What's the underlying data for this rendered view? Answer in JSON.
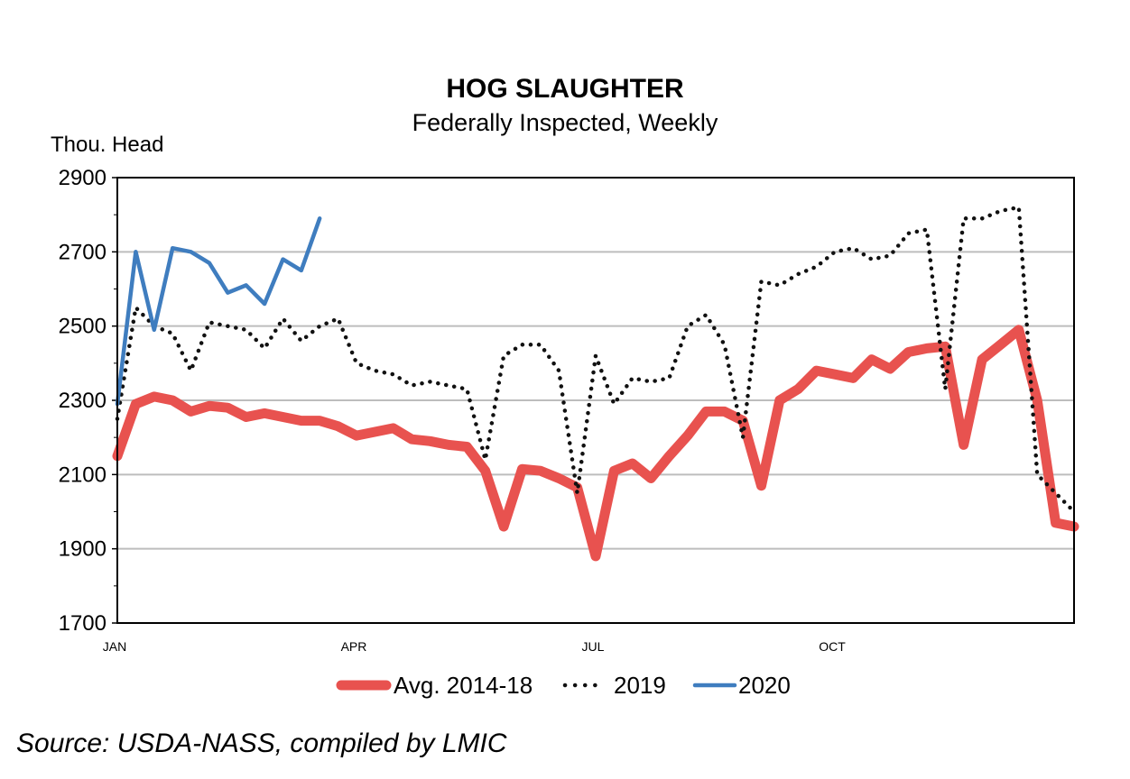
{
  "chart_data": {
    "type": "line",
    "title": "HOG SLAUGHTER",
    "subtitle": "Federally Inspected, Weekly",
    "ylabel": "Thou. Head",
    "ylim": [
      1700,
      2900
    ],
    "yticks": [
      1700,
      1900,
      2100,
      2300,
      2500,
      2700,
      2900
    ],
    "xlim": [
      1,
      53
    ],
    "xticks": [
      {
        "week": 1,
        "label": "JAN"
      },
      {
        "week": 14,
        "label": "APR"
      },
      {
        "week": 27,
        "label": "JUL"
      },
      {
        "week": 40,
        "label": "OCT"
      }
    ],
    "grid": true,
    "legend": "bottom",
    "series": [
      {
        "name": "Avg. 2014-18",
        "color": "#e8524f",
        "style": "thick",
        "weeks": [
          1,
          2,
          3,
          4,
          5,
          6,
          7,
          8,
          9,
          10,
          11,
          12,
          13,
          14,
          15,
          16,
          17,
          18,
          19,
          20,
          21,
          22,
          23,
          24,
          25,
          26,
          27,
          28,
          29,
          30,
          31,
          32,
          33,
          34,
          35,
          36,
          37,
          38,
          39,
          40,
          41,
          42,
          43,
          44,
          45,
          46,
          47,
          48,
          49,
          50,
          51,
          52,
          53
        ],
        "values": [
          2150,
          2290,
          2310,
          2300,
          2270,
          2285,
          2280,
          2255,
          2265,
          2255,
          2245,
          2245,
          2230,
          2205,
          2215,
          2225,
          2195,
          2190,
          2180,
          2175,
          2110,
          1960,
          2115,
          2110,
          2090,
          2065,
          1880,
          2110,
          2130,
          2090,
          2150,
          2205,
          2270,
          2270,
          2245,
          2070,
          2300,
          2330,
          2380,
          2370,
          2360,
          2410,
          2385,
          2430,
          2440,
          2445,
          2180,
          2410,
          2450,
          2490,
          2300,
          1970,
          1960
        ]
      },
      {
        "name": "2019",
        "color": "#111111",
        "style": "dotted",
        "weeks": [
          1,
          2,
          3,
          4,
          5,
          6,
          7,
          8,
          9,
          10,
          11,
          12,
          13,
          14,
          15,
          16,
          17,
          18,
          19,
          20,
          21,
          22,
          23,
          24,
          25,
          26,
          27,
          28,
          29,
          30,
          31,
          32,
          33,
          34,
          35,
          36,
          37,
          38,
          39,
          40,
          41,
          42,
          43,
          44,
          45,
          46,
          47,
          48,
          49,
          50,
          51,
          52,
          53
        ],
        "values": [
          2250,
          2550,
          2500,
          2480,
          2380,
          2510,
          2500,
          2490,
          2440,
          2520,
          2460,
          2500,
          2520,
          2400,
          2380,
          2370,
          2340,
          2350,
          2340,
          2330,
          2140,
          2420,
          2450,
          2450,
          2380,
          2050,
          2420,
          2290,
          2360,
          2350,
          2360,
          2500,
          2530,
          2450,
          2200,
          2620,
          2610,
          2640,
          2660,
          2700,
          2710,
          2680,
          2690,
          2750,
          2760,
          2330,
          2790,
          2790,
          2810,
          2820,
          2100,
          2050,
          2000
        ]
      },
      {
        "name": "2020",
        "color": "#3f7dbf",
        "style": "solid",
        "weeks": [
          1,
          2,
          3,
          4,
          5,
          6,
          7,
          8,
          9,
          10,
          11,
          12
        ],
        "values": [
          2290,
          2700,
          2490,
          2710,
          2700,
          2670,
          2590,
          2610,
          2560,
          2680,
          2650,
          2790
        ]
      }
    ]
  },
  "source": "Source: USDA-NASS, compiled by LMIC"
}
